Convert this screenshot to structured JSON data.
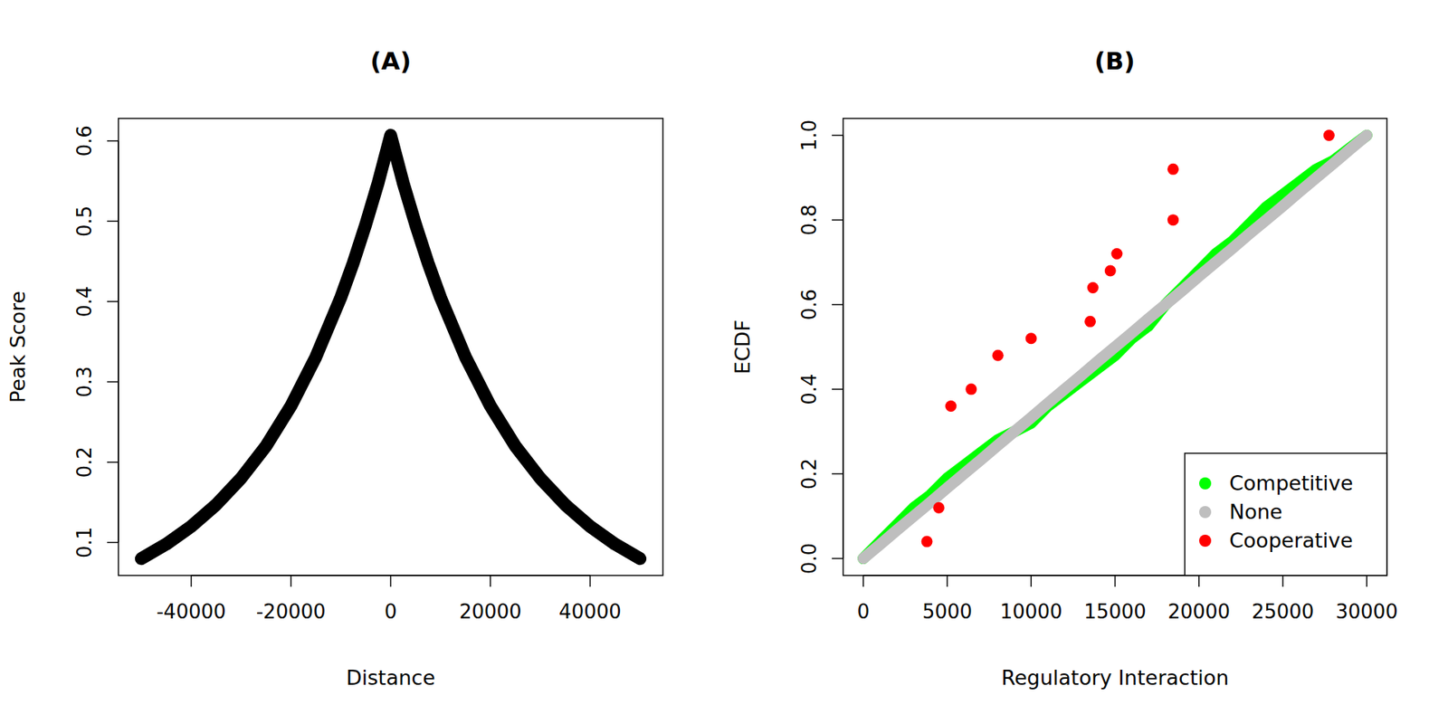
{
  "chart_data": [
    {
      "type": "line",
      "title": "(A)",
      "x_label": "Distance",
      "y_label": "Peak Score",
      "color": "#000000",
      "x": [
        -50000,
        -45000,
        -40000,
        -35000,
        -30000,
        -25000,
        -20000,
        -15000,
        -10000,
        -7500,
        -5000,
        -2500,
        0,
        2500,
        5000,
        7500,
        10000,
        15000,
        20000,
        25000,
        30000,
        35000,
        40000,
        45000,
        50000
      ],
      "values": [
        0.08,
        0.098,
        0.12,
        0.147,
        0.18,
        0.22,
        0.27,
        0.331,
        0.405,
        0.448,
        0.496,
        0.548,
        0.607,
        0.548,
        0.496,
        0.448,
        0.405,
        0.331,
        0.27,
        0.22,
        0.18,
        0.147,
        0.12,
        0.098,
        0.08
      ],
      "xlim": [
        -54600,
        54600
      ],
      "xticks": [
        -40000,
        -20000,
        0,
        20000,
        40000
      ],
      "ylim": [
        0.059,
        0.628
      ],
      "yticks": [
        0.1,
        0.2,
        0.3,
        0.4,
        0.5,
        0.6
      ]
    },
    {
      "type": "scatter",
      "title": "(B)",
      "x_label": "Regulatory Interaction",
      "y_label": "ECDF",
      "legend": "bottomright",
      "xlim": [
        -1200,
        31200
      ],
      "xticks": [
        0,
        5000,
        10000,
        15000,
        20000,
        25000,
        30000
      ],
      "ylim": [
        -0.04,
        1.04
      ],
      "yticks": [
        {
          "value": 0,
          "label": "0.0"
        },
        0.2,
        0.4,
        0.6,
        0.8,
        {
          "value": 1,
          "label": "1.0"
        }
      ],
      "series": [
        {
          "name": "Competitive",
          "color": "#00ff00",
          "type": "line",
          "marker": "circle",
          "x": [
            0,
            1000,
            2000,
            3000,
            4000,
            5000,
            6000,
            7000,
            8000,
            9000,
            10000,
            11000,
            12000,
            13000,
            14000,
            15000,
            16000,
            17000,
            18000,
            19000,
            20000,
            21000,
            22000,
            23000,
            24000,
            25000,
            26000,
            27000,
            28000,
            29000,
            30000
          ],
          "values": [
            0,
            0.04,
            0.08,
            0.12,
            0.15,
            0.19,
            0.22,
            0.25,
            0.28,
            0.3,
            0.32,
            0.36,
            0.39,
            0.42,
            0.45,
            0.48,
            0.52,
            0.55,
            0.6,
            0.64,
            0.68,
            0.72,
            0.75,
            0.79,
            0.83,
            0.86,
            0.89,
            0.92,
            0.94,
            0.97,
            1
          ]
        },
        {
          "name": "None",
          "color": "#bebebe",
          "type": "line",
          "marker": "circle",
          "x": [
            0,
            1000,
            2000,
            3000,
            4000,
            5000,
            6000,
            7000,
            8000,
            9000,
            10000,
            11000,
            12000,
            13000,
            14000,
            15000,
            16000,
            17000,
            18000,
            19000,
            20000,
            21000,
            22000,
            23000,
            24000,
            25000,
            26000,
            27000,
            28000,
            29000,
            30000
          ],
          "values": [
            0,
            0.033,
            0.067,
            0.1,
            0.133,
            0.167,
            0.2,
            0.233,
            0.267,
            0.3,
            0.333,
            0.367,
            0.4,
            0.433,
            0.467,
            0.5,
            0.533,
            0.567,
            0.6,
            0.633,
            0.667,
            0.7,
            0.733,
            0.767,
            0.8,
            0.833,
            0.867,
            0.9,
            0.933,
            0.967,
            1
          ]
        },
        {
          "name": "Cooperative",
          "color": "#ff0000",
          "type": "scatter",
          "marker": "circle",
          "x": [
            3790,
            4500,
            5220,
            6430,
            8020,
            10000,
            13520,
            13680,
            14720,
            15110,
            18460,
            18460,
            27750
          ],
          "values": [
            0.04,
            0.12,
            0.36,
            0.4,
            0.48,
            0.52,
            0.56,
            0.64,
            0.68,
            0.72,
            0.8,
            0.92,
            1.0
          ]
        }
      ]
    }
  ]
}
